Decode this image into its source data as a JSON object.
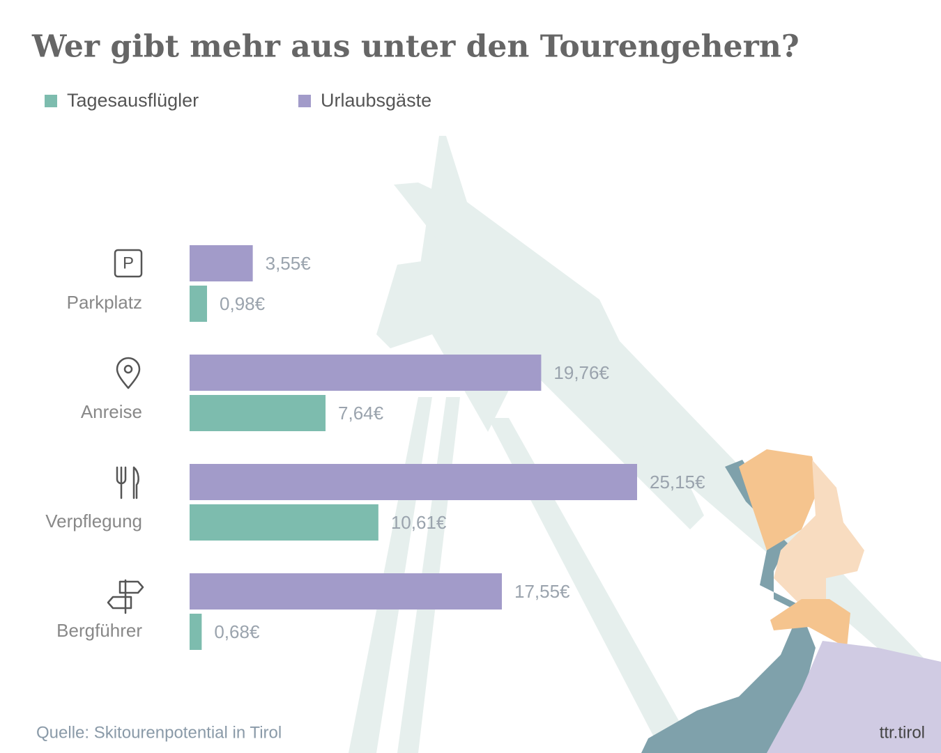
{
  "chart_data": {
    "type": "bar",
    "orientation": "horizontal",
    "title": "Wer gibt mehr aus unter den Tourengehern?",
    "categories": [
      "Parkplatz",
      "Anreise",
      "Verpflegung",
      "Bergführer"
    ],
    "series": [
      {
        "name": "Tagesausflügler",
        "color": "#7dbcae",
        "values": [
          0.98,
          7.64,
          10.61,
          0.68
        ],
        "value_labels": [
          "0,98€",
          "7,64€",
          "10,61€",
          "0,68€"
        ]
      },
      {
        "name": "Urlaubsgäste",
        "color": "#a29bc9",
        "values": [
          3.55,
          19.76,
          25.15,
          17.55
        ],
        "value_labels": [
          "3,55€",
          "19,76€",
          "25,15€",
          "17,55€"
        ]
      }
    ],
    "source": "Quelle: Skitourenpotential in Tirol",
    "brand": "ttr.tirol"
  }
}
